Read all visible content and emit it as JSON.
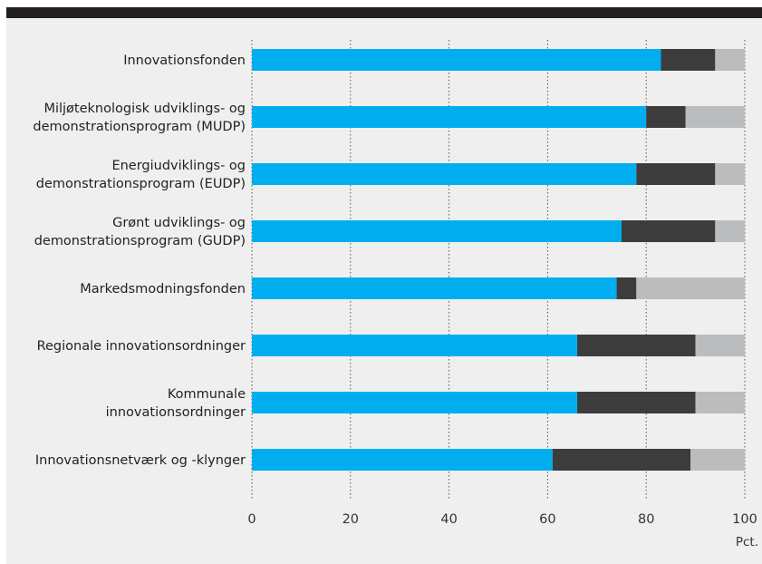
{
  "chart_data": {
    "type": "bar",
    "orientation": "horizontal",
    "stacked": true,
    "categories": [
      [
        "Innovationsfonden"
      ],
      [
        "Miljøteknologisk udviklings- og",
        "demonstrationsprogram (MUDP)"
      ],
      [
        "Energiudviklings- og",
        "demonstrationsprogram (EUDP)"
      ],
      [
        "Grønt udviklings- og",
        "demonstrationsprogram (GUDP)"
      ],
      [
        "Markedsmodningsfonden"
      ],
      [
        "Regionale innovationsordninger"
      ],
      [
        "Kommunale",
        "innovationsordninger"
      ],
      [
        "Innovationsnetværk og -klynger"
      ]
    ],
    "series": [
      {
        "values": [
          83,
          80,
          78,
          75,
          74,
          66,
          66,
          61
        ],
        "color": "#00aeef"
      },
      {
        "values": [
          11,
          8,
          16,
          19,
          4,
          24,
          24,
          28
        ],
        "color": "#3c3c3c"
      },
      {
        "values": [
          6,
          12,
          6,
          6,
          22,
          10,
          10,
          11
        ],
        "color": "#bbbcbe"
      }
    ],
    "xlim": [
      0,
      100
    ],
    "xticks": [
      0,
      20,
      40,
      60,
      80,
      100
    ],
    "xlabel": "Pct.",
    "grid": "vertical dotted",
    "legend": "none"
  }
}
